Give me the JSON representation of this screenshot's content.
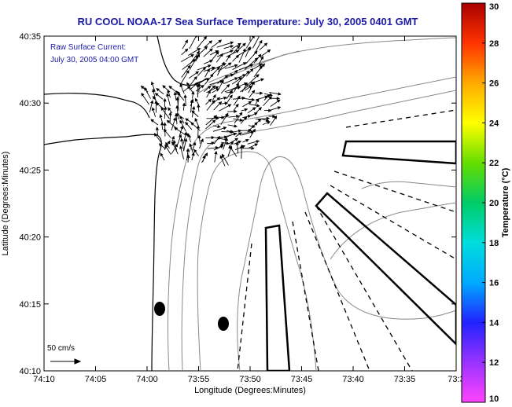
{
  "title": "RU COOL  NOAA-17  Sea Surface Temperature:  July 30, 2005 0401 GMT",
  "annotation": {
    "line1": "Raw Surface Current:",
    "line2": "July 30, 2005 04:00 GMT"
  },
  "scale_label": "50 cm/s",
  "axes": {
    "xlabel": "Longitude (Degrees:Minutes)",
    "ylabel": "Latitude (Degrees:Minutes)",
    "x_ticks": [
      "74:10",
      "74:05",
      "74:00",
      "73:55",
      "73:50",
      "73:45",
      "73:40",
      "73:35",
      "73:3"
    ],
    "y_ticks": [
      "40:35",
      "40:30",
      "40:25",
      "40:20",
      "40:15",
      "40:10"
    ]
  },
  "colorbar": {
    "label": "Temperature (°C)",
    "ticks": [
      "30",
      "28",
      "26",
      "24",
      "22",
      "20",
      "18",
      "16",
      "14",
      "12",
      "10"
    ],
    "min": 10,
    "max": 30,
    "colors": [
      "#ff44ff",
      "#9933ff",
      "#2222ff",
      "#00aaff",
      "#00dddd",
      "#00cc66",
      "#66dd00",
      "#ffff00",
      "#ffaa00",
      "#ff3300",
      "#aa0000"
    ]
  },
  "colors": {
    "title": "#1a1aa8",
    "annotation": "#1a1aa8",
    "axis": "#000000",
    "contour": "#888888",
    "coast": "#000000"
  }
}
